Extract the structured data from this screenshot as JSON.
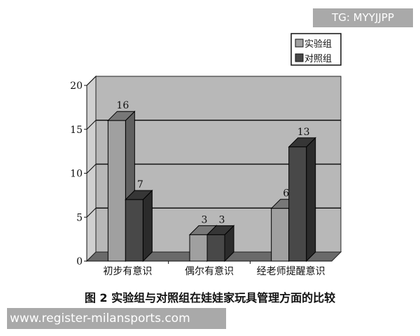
{
  "watermarks": {
    "top": "TG: MYYJJPP",
    "bottom": "www.register-milansports.com"
  },
  "caption": "图 2   实验组与对照组在娃娃家玩具管理方面的比较",
  "chart_data": {
    "type": "bar",
    "style": "3d-clustered",
    "categories": [
      "初步有意识",
      "偶尔有意识",
      "经老师提醒意识"
    ],
    "series": [
      {
        "name": "实验组",
        "values": [
          16,
          3,
          6
        ],
        "color": "#a0a0a0"
      },
      {
        "name": "对照组",
        "values": [
          7,
          3,
          13
        ],
        "color": "#484848"
      }
    ],
    "data_labels": true,
    "ylim": [
      0,
      20
    ],
    "yticks": [
      0,
      5,
      10,
      15,
      20
    ],
    "grid": true,
    "legend": "top-right",
    "wall_color": "#b8b8b8"
  }
}
